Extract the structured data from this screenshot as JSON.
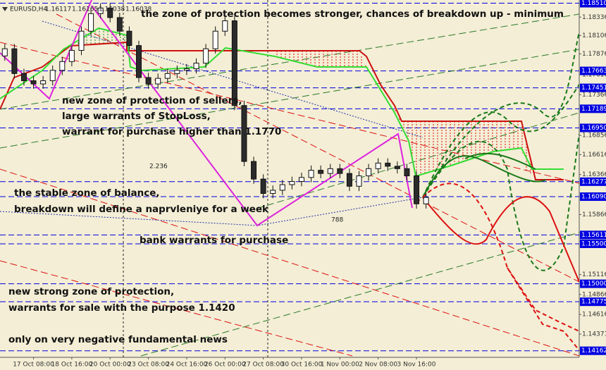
{
  "chart_data": {
    "type": "candlestick",
    "symbol": "EURUSD,H4",
    "header_values": [
      1.16117,
      1.16165,
      1.16038,
      1.16038
    ],
    "x": [
      0,
      2,
      4,
      6,
      8,
      10,
      12,
      14,
      16,
      18,
      20,
      22,
      24,
      26,
      28,
      30,
      32,
      34,
      36,
      38,
      40,
      42,
      44,
      46,
      48,
      50,
      52,
      54,
      56,
      58,
      60,
      62,
      64,
      66,
      68,
      70,
      72,
      74,
      76,
      78,
      80,
      82,
      84,
      86,
      88
    ],
    "open": [
      1.1785,
      1.1794,
      1.1763,
      1.1754,
      1.175,
      1.1754,
      1.1767,
      1.1778,
      1.1792,
      1.1816,
      1.1838,
      1.1845,
      1.1833,
      1.1816,
      1.1798,
      1.1758,
      1.175,
      1.1757,
      1.1763,
      1.1767,
      1.1769,
      1.1776,
      1.1794,
      1.1816,
      1.1829,
      1.1723,
      1.1653,
      1.1631,
      1.1613,
      1.1617,
      1.1624,
      1.1628,
      1.1633,
      1.1642,
      1.1638,
      1.1644,
      1.1638,
      1.1622,
      1.1635,
      1.1644,
      1.1651,
      1.1647,
      1.1644,
      1.1635,
      1.16
    ],
    "high": [
      1.18,
      1.18,
      1.1769,
      1.176,
      1.176,
      1.1773,
      1.1784,
      1.1798,
      1.1822,
      1.1844,
      1.1851,
      1.1851,
      1.1839,
      1.1822,
      1.1804,
      1.1764,
      1.1763,
      1.1769,
      1.1773,
      1.1775,
      1.1782,
      1.18,
      1.1822,
      1.1835,
      1.1835,
      1.1729,
      1.1659,
      1.1637,
      1.1623,
      1.163,
      1.1634,
      1.1639,
      1.1648,
      1.1648,
      1.165,
      1.165,
      1.1644,
      1.1641,
      1.165,
      1.1657,
      1.1657,
      1.1653,
      1.165,
      1.1641,
      1.1614
    ],
    "low": [
      1.1779,
      1.1757,
      1.1748,
      1.1744,
      1.1744,
      1.1748,
      1.1761,
      1.1772,
      1.1786,
      1.181,
      1.1832,
      1.1827,
      1.181,
      1.1792,
      1.1752,
      1.1744,
      1.1744,
      1.1751,
      1.1757,
      1.1761,
      1.1763,
      1.177,
      1.1788,
      1.181,
      1.1717,
      1.1647,
      1.1625,
      1.1607,
      1.1607,
      1.1611,
      1.1618,
      1.1622,
      1.1627,
      1.1632,
      1.1632,
      1.1632,
      1.1616,
      1.1616,
      1.1629,
      1.1638,
      1.1641,
      1.1638,
      1.1629,
      1.1594,
      1.1594
    ],
    "close": [
      1.1794,
      1.1763,
      1.1754,
      1.175,
      1.1754,
      1.1767,
      1.1778,
      1.1792,
      1.1816,
      1.1838,
      1.1845,
      1.1833,
      1.1816,
      1.1798,
      1.1758,
      1.175,
      1.1757,
      1.1763,
      1.1767,
      1.1769,
      1.1776,
      1.1794,
      1.1816,
      1.1829,
      1.1723,
      1.1653,
      1.1631,
      1.1613,
      1.1617,
      1.1624,
      1.1628,
      1.1633,
      1.1642,
      1.1638,
      1.1644,
      1.1638,
      1.1622,
      1.1635,
      1.1644,
      1.1651,
      1.1647,
      1.1644,
      1.1635,
      1.16,
      1.1608
    ],
    "up_color": "#ffffff",
    "down_color": "#2b2b2b",
    "xlim": [
      -1,
      120
    ],
    "xticks": [
      {
        "value": 6,
        "label": "17 Oct 08:00"
      },
      {
        "value": 14,
        "label": "18 Oct 16:00"
      },
      {
        "value": 22,
        "label": "20 Oct 00:00"
      },
      {
        "value": 30,
        "label": "23 Oct 08:00"
      },
      {
        "value": 38,
        "label": "24 Oct 16:00"
      },
      {
        "value": 46,
        "label": "26 Oct 00:00"
      },
      {
        "value": 54,
        "label": "27 Oct 08:00"
      },
      {
        "value": 62,
        "label": "30 Oct 16:00"
      },
      {
        "value": 70,
        "label": "1 Nov 00:00"
      },
      {
        "value": 78,
        "label": "2 Nov 08:00"
      },
      {
        "value": 86,
        "label": "3 Nov 16:00"
      }
    ],
    "ylim": [
      1.1408,
      1.1855
    ],
    "yticks": [
      1.18336,
      1.18106,
      1.17876,
      1.17616,
      1.17366,
      1.16856,
      1.16616,
      1.16366,
      1.15866,
      1.15116,
      1.14866,
      1.14616,
      1.14371
    ],
    "levels": [
      {
        "value": 1.1851,
        "label": "1.18510"
      },
      1.17663,
      1.17451,
      1.17189,
      {
        "value": 1.1695,
        "label": "1.16950"
      },
      1.16277,
      {
        "value": 1.1609,
        "label": "1.16090"
      },
      1.15611,
      {
        "value": 1.155,
        "label": "1.15500"
      },
      {
        "value": 1.15,
        "label": "1.15000"
      },
      1.14775,
      1.14162
    ],
    "level_color": "#0000e0",
    "annotations": [
      "the zone of protection becomes stronger, chances of breakdown up - minimum",
      "new zone of protection of sellers,",
      "large warrants of StopLoss,",
      "warrant for purchase higher than 1.1770",
      "the stable zone of balance,",
      "breakdown will define a naprvleniye for a week",
      "bank warrants for purchase",
      "new strong zone of protection,",
      "warrants for sale with the purpose 1.1420",
      "only on very negative fundamental news",
      "2.236",
      "788"
    ]
  }
}
